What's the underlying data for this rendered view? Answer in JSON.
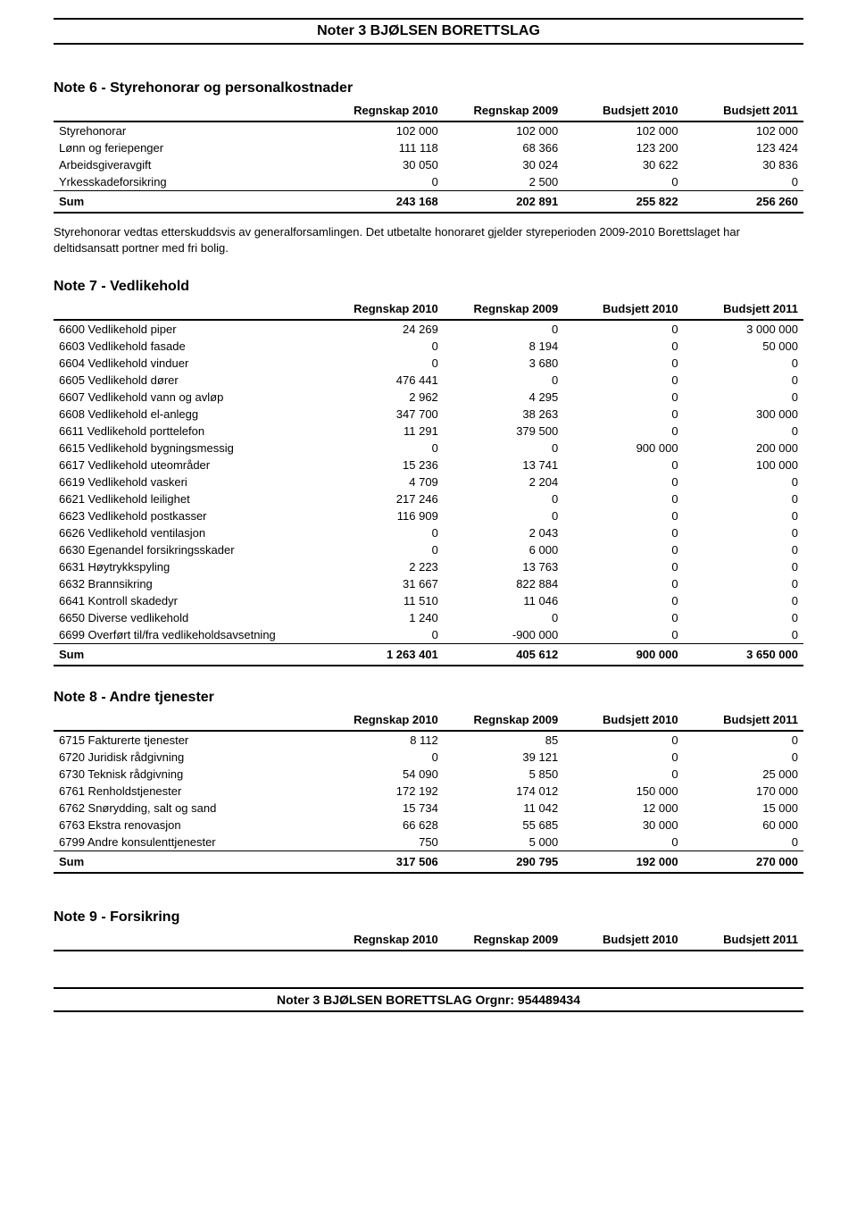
{
  "header": "Noter 3 BJØLSEN BORETTSLAG",
  "footer": "Noter 3 BJØLSEN BORETTSLAG Orgnr: 954489434",
  "columns": [
    "Regnskap 2010",
    "Regnskap 2009",
    "Budsjett 2010",
    "Budsjett 2011"
  ],
  "note6": {
    "title": "Note 6 - Styrehonorar og personalkostnader",
    "rows": [
      {
        "label": "Styrehonorar",
        "v": [
          "102 000",
          "102 000",
          "102 000",
          "102 000"
        ]
      },
      {
        "label": "Lønn og feriepenger",
        "v": [
          "111 118",
          "68 366",
          "123 200",
          "123 424"
        ]
      },
      {
        "label": "Arbeidsgiveravgift",
        "v": [
          "30 050",
          "30 024",
          "30 622",
          "30 836"
        ]
      },
      {
        "label": "Yrkesskadeforsikring",
        "v": [
          "0",
          "2 500",
          "0",
          "0"
        ]
      }
    ],
    "sum": {
      "label": "Sum",
      "v": [
        "243 168",
        "202 891",
        "255 822",
        "256 260"
      ]
    },
    "para": "Styrehonorar vedtas etterskuddsvis av generalforsamlingen. Det utbetalte honoraret gjelder styreperioden 2009-2010 Borettslaget har deltidsansatt portner med fri bolig."
  },
  "note7": {
    "title": "Note 7 - Vedlikehold",
    "rows": [
      {
        "label": "6600 Vedlikehold piper",
        "v": [
          "24 269",
          "0",
          "0",
          "3 000 000"
        ]
      },
      {
        "label": "6603 Vedlikehold fasade",
        "v": [
          "0",
          "8 194",
          "0",
          "50 000"
        ]
      },
      {
        "label": "6604 Vedlikehold vinduer",
        "v": [
          "0",
          "3 680",
          "0",
          "0"
        ]
      },
      {
        "label": "6605 Vedlikehold dører",
        "v": [
          "476 441",
          "0",
          "0",
          "0"
        ]
      },
      {
        "label": "6607 Vedlikehold vann og avløp",
        "v": [
          "2 962",
          "4 295",
          "0",
          "0"
        ]
      },
      {
        "label": "6608 Vedlikehold el-anlegg",
        "v": [
          "347 700",
          "38 263",
          "0",
          "300 000"
        ]
      },
      {
        "label": "6611 Vedlikehold porttelefon",
        "v": [
          "11 291",
          "379 500",
          "0",
          "0"
        ]
      },
      {
        "label": "6615 Vedlikehold bygningsmessig",
        "v": [
          "0",
          "0",
          "900 000",
          "200 000"
        ]
      },
      {
        "label": "6617 Vedlikehold uteområder",
        "v": [
          "15 236",
          "13 741",
          "0",
          "100 000"
        ]
      },
      {
        "label": "6619 Vedlikehold vaskeri",
        "v": [
          "4 709",
          "2 204",
          "0",
          "0"
        ]
      },
      {
        "label": "6621 Vedlikehold leilighet",
        "v": [
          "217 246",
          "0",
          "0",
          "0"
        ]
      },
      {
        "label": "6623 Vedlikehold postkasser",
        "v": [
          "116 909",
          "0",
          "0",
          "0"
        ]
      },
      {
        "label": "6626 Vedlikehold ventilasjon",
        "v": [
          "0",
          "2 043",
          "0",
          "0"
        ]
      },
      {
        "label": "6630 Egenandel forsikringsskader",
        "v": [
          "0",
          "6 000",
          "0",
          "0"
        ]
      },
      {
        "label": "6631 Høytrykkspyling",
        "v": [
          "2 223",
          "13 763",
          "0",
          "0"
        ]
      },
      {
        "label": "6632 Brannsikring",
        "v": [
          "31 667",
          "822 884",
          "0",
          "0"
        ]
      },
      {
        "label": "6641 Kontroll skadedyr",
        "v": [
          "11 510",
          "11 046",
          "0",
          "0"
        ]
      },
      {
        "label": "6650 Diverse vedlikehold",
        "v": [
          "1 240",
          "0",
          "0",
          "0"
        ]
      },
      {
        "label": "6699 Overført til/fra vedlikeholdsavsetning",
        "v": [
          "0",
          "-900 000",
          "0",
          "0"
        ]
      }
    ],
    "sum": {
      "label": "Sum",
      "v": [
        "1 263 401",
        "405 612",
        "900 000",
        "3 650 000"
      ]
    }
  },
  "note8": {
    "title": "Note 8 - Andre tjenester",
    "rows": [
      {
        "label": "6715 Fakturerte tjenester",
        "v": [
          "8 112",
          "85",
          "0",
          "0"
        ]
      },
      {
        "label": "6720 Juridisk rådgivning",
        "v": [
          "0",
          "39 121",
          "0",
          "0"
        ]
      },
      {
        "label": "6730 Teknisk rådgivning",
        "v": [
          "54 090",
          "5 850",
          "0",
          "25 000"
        ]
      },
      {
        "label": "6761 Renholdstjenester",
        "v": [
          "172 192",
          "174 012",
          "150 000",
          "170 000"
        ]
      },
      {
        "label": "6762 Snørydding, salt og sand",
        "v": [
          "15 734",
          "11 042",
          "12 000",
          "15 000"
        ]
      },
      {
        "label": "6763 Ekstra renovasjon",
        "v": [
          "66 628",
          "55 685",
          "30 000",
          "60 000"
        ]
      },
      {
        "label": "6799 Andre konsulenttjenester",
        "v": [
          "750",
          "5 000",
          "0",
          "0"
        ]
      }
    ],
    "sum": {
      "label": "Sum",
      "v": [
        "317 506",
        "290 795",
        "192 000",
        "270 000"
      ]
    }
  },
  "note9": {
    "title": "Note 9 - Forsikring"
  }
}
